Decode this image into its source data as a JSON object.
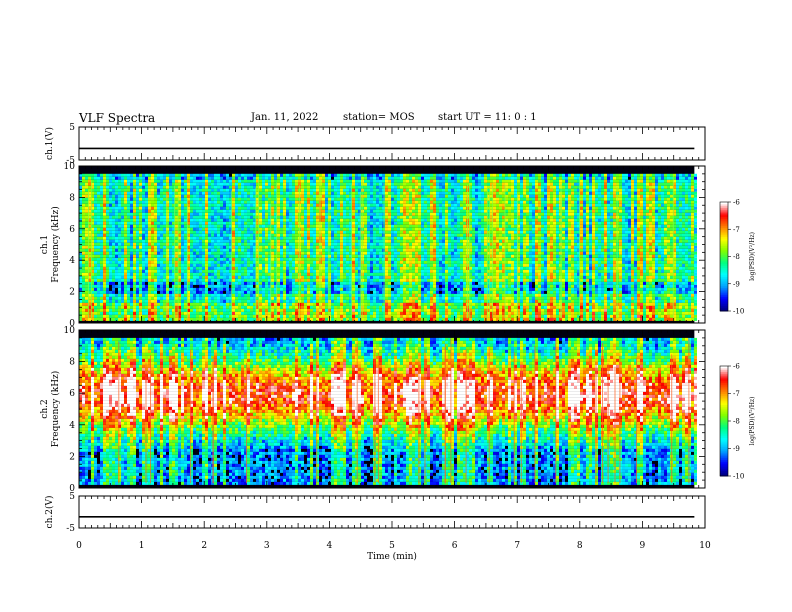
{
  "header": {
    "title": "VLF Spectra",
    "date": "Jan. 11, 2022",
    "station": "station= MOS",
    "start": "start  UT =   11: 0  : 1"
  },
  "chart_data": [
    {
      "type": "line",
      "title": "",
      "ylabel": "ch.1(V)",
      "ylim": [
        -5,
        5
      ],
      "yticks": [
        "5",
        "-5"
      ],
      "x": [
        0,
        9.83
      ],
      "series": [
        {
          "values": [
            -1.5,
            -1.5
          ]
        }
      ]
    },
    {
      "type": "heatmap",
      "ylabel": "ch.1\nFrequency (kHz)",
      "ylim": [
        0,
        10
      ],
      "yticks": [
        "0",
        "2",
        "4",
        "6",
        "8",
        "10"
      ],
      "xlim": [
        0,
        10
      ],
      "data_extent_min": 9.83,
      "band_kHz": [
        0.3,
        9.5
      ],
      "colorbar": {
        "label": "log(PSD)(V²/Hz)",
        "min": -10,
        "max": -6,
        "ticks": [
          "-10",
          "-9",
          "-8",
          "-7",
          "-6"
        ]
      }
    },
    {
      "type": "heatmap",
      "ylabel": "ch.2\nFrequency (kHz)",
      "ylim": [
        0,
        10
      ],
      "yticks": [
        "0",
        "2",
        "4",
        "6",
        "8",
        "10"
      ],
      "xlim": [
        0,
        10
      ],
      "data_extent_min": 9.83,
      "band_kHz": [
        0.3,
        9.5
      ],
      "colorbar": {
        "label": "log(PSD)(V²/Hz)",
        "min": -10,
        "max": -6,
        "ticks": [
          "-10",
          "-9",
          "-8",
          "-7",
          "-6"
        ]
      }
    },
    {
      "type": "line",
      "ylabel": "ch.2(V)",
      "ylim": [
        -5,
        5
      ],
      "yticks": [
        "5",
        "-5"
      ],
      "x": [
        0,
        9.83
      ],
      "series": [
        {
          "values": [
            -1.5,
            -1.5
          ]
        }
      ]
    }
  ],
  "x_axis": {
    "label": "Time (min)",
    "ticks": [
      "0",
      "1",
      "2",
      "3",
      "4",
      "5",
      "6",
      "7",
      "8",
      "9",
      "10"
    ],
    "range": [
      0,
      10
    ]
  },
  "colors": {
    "colormap": [
      "#000080",
      "#0000ff",
      "#00a0ff",
      "#00ffff",
      "#00ff80",
      "#80ff00",
      "#ffff00",
      "#ff8000",
      "#ff0000",
      "#ffffff"
    ]
  }
}
